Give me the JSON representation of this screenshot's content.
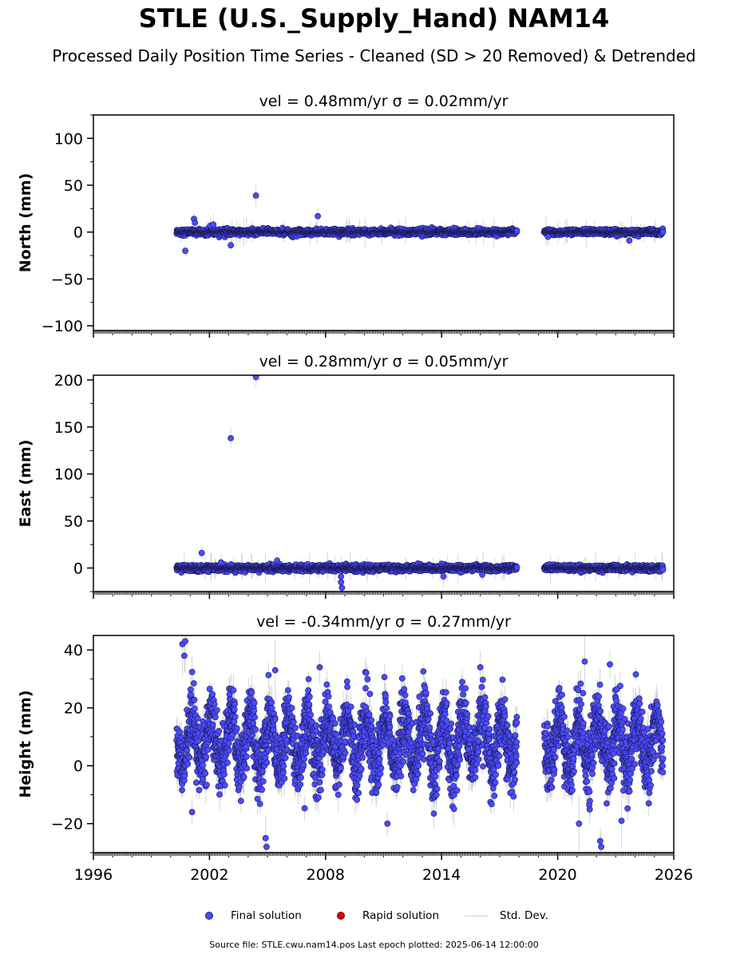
{
  "figure": {
    "title": "STLE (U.S._Supply_Hand) NAM14",
    "subtitle": "Processed Daily Position Time Series - Cleaned (SD > 20 Removed) & Detrended",
    "footer": "Source file: STLE.cwu.nam14.pos  Last epoch plotted: 2025-06-14 12:00:00"
  },
  "legend": {
    "final": "Final solution",
    "rapid": "Rapid solution",
    "stddev": "Std. Dev.",
    "colors": {
      "final": "#4b4bff",
      "rapid": "#e00000",
      "stddev": "#cfcfcf"
    }
  },
  "chart_data": [
    {
      "type": "scatter",
      "panel": "north",
      "title": "vel = 0.48mm/yr   σ = 0.02mm/yr",
      "ylabel": "North (mm)",
      "xlim": [
        1996,
        2026
      ],
      "ylim": [
        -105,
        125
      ],
      "yticks": [
        -100,
        -50,
        0,
        50,
        100
      ],
      "xticks": [
        1996,
        2002,
        2008,
        2014,
        2020,
        2026
      ],
      "segments": [
        {
          "start": 2000.3,
          "end": 2017.9,
          "sd": 1.6
        },
        {
          "start": 2019.3,
          "end": 2025.45,
          "sd": 1.5
        }
      ],
      "outliers": [
        {
          "x": 2000.75,
          "y": -20
        },
        {
          "x": 2001.2,
          "y": 14
        },
        {
          "x": 2001.25,
          "y": 10
        },
        {
          "x": 2002.05,
          "y": 7
        },
        {
          "x": 2002.2,
          "y": 8
        },
        {
          "x": 2003.1,
          "y": -14
        },
        {
          "x": 2004.4,
          "y": 39
        },
        {
          "x": 2007.6,
          "y": 17
        },
        {
          "x": 2019.5,
          "y": -5
        },
        {
          "x": 2023.7,
          "y": -9
        }
      ]
    },
    {
      "type": "scatter",
      "panel": "east",
      "title": "vel = 0.28mm/yr   σ = 0.05mm/yr",
      "ylabel": "East (mm)",
      "xlim": [
        1996,
        2026
      ],
      "ylim": [
        -25,
        205
      ],
      "yticks": [
        0,
        50,
        100,
        150,
        200
      ],
      "xticks": [
        1996,
        2002,
        2008,
        2014,
        2020,
        2026
      ],
      "segments": [
        {
          "start": 2000.3,
          "end": 2017.9,
          "sd": 1.7
        },
        {
          "start": 2019.3,
          "end": 2025.45,
          "sd": 1.6
        }
      ],
      "outliers": [
        {
          "x": 2001.6,
          "y": 16
        },
        {
          "x": 2002.6,
          "y": 6
        },
        {
          "x": 2003.1,
          "y": 138
        },
        {
          "x": 2004.4,
          "y": 203
        },
        {
          "x": 2005.5,
          "y": 8
        },
        {
          "x": 2008.8,
          "y": -9
        },
        {
          "x": 2008.8,
          "y": -15
        },
        {
          "x": 2008.85,
          "y": -21
        },
        {
          "x": 2014.1,
          "y": -9
        },
        {
          "x": 2016.1,
          "y": -7
        }
      ]
    },
    {
      "type": "scatter",
      "panel": "height",
      "title": "vel = -0.34mm/yr   σ = 0.27mm/yr",
      "ylabel": "Height (mm)",
      "xlim": [
        1996,
        2026
      ],
      "ylim": [
        -30,
        45
      ],
      "yticks": [
        -20,
        0,
        20,
        40
      ],
      "xticks": [
        1996,
        2002,
        2008,
        2014,
        2020,
        2026
      ],
      "segments": [
        {
          "start": 2000.3,
          "end": 2017.9,
          "sd": 5.5
        },
        {
          "start": 2019.3,
          "end": 2025.45,
          "sd": 5.5
        }
      ],
      "seasonal": {
        "mean": 8,
        "amplitude": 9
      },
      "outliers": [
        {
          "x": 2000.6,
          "y": 42
        },
        {
          "x": 2000.75,
          "y": 43
        },
        {
          "x": 2000.7,
          "y": 38
        },
        {
          "x": 2001.1,
          "y": -16
        },
        {
          "x": 2004.9,
          "y": -25
        },
        {
          "x": 2004.95,
          "y": -28
        },
        {
          "x": 2005.4,
          "y": 33
        },
        {
          "x": 2007.7,
          "y": 34
        },
        {
          "x": 2011.2,
          "y": -20
        },
        {
          "x": 2016.0,
          "y": 34
        },
        {
          "x": 2021.4,
          "y": 36
        },
        {
          "x": 2021.1,
          "y": -20
        },
        {
          "x": 2022.2,
          "y": -26
        },
        {
          "x": 2022.25,
          "y": -28
        },
        {
          "x": 2022.7,
          "y": 35
        },
        {
          "x": 2023.3,
          "y": -19
        }
      ]
    }
  ]
}
